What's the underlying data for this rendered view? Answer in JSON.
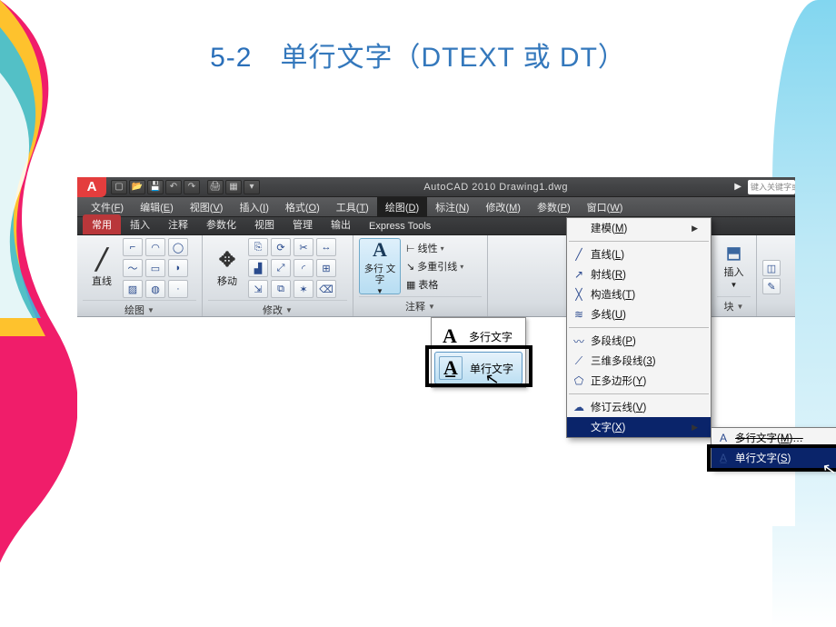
{
  "slide_title_num": "5-2",
  "slide_title_rest": "　单行文字（DTEXT 或  DT）",
  "titlebar": "AutoCAD 2010   Drawing1.dwg",
  "searchbox_ph": "键入关键字或",
  "menus": [
    "文件(F)",
    "编辑(E)",
    "视图(V)",
    "插入(I)",
    "格式(O)",
    "工具(T)",
    "绘图(D)",
    "标注(N)",
    "修改(M)",
    "参数(P)",
    "窗口(W)"
  ],
  "open_menu_index": 6,
  "tabs": [
    "常用",
    "插入",
    "注释",
    "参数化",
    "视图",
    "管理",
    "输出",
    "Express Tools"
  ],
  "active_tab_index": 0,
  "panels": {
    "draw": {
      "title": "绘图",
      "big": "直线"
    },
    "modify": {
      "title": "修改",
      "big": "移动"
    },
    "ann": {
      "title": "注释",
      "big": "多行\n文字",
      "row1": "线性",
      "row2": "多重引线",
      "row3": "表格"
    },
    "insert": {
      "title": "插入"
    },
    "block": {
      "title": "块"
    }
  },
  "text_dropdown": {
    "item1": "多行文字",
    "item2": "单行文字"
  },
  "draw_menu": [
    {
      "t": "建模(M)",
      "icon": "",
      "arrow": true
    },
    {
      "sep": true
    },
    {
      "t": "直线(L)",
      "icon": "╱"
    },
    {
      "t": "射线(R)",
      "icon": "↗"
    },
    {
      "t": "构造线(T)",
      "icon": "╳"
    },
    {
      "t": "多线(U)",
      "icon": "≋"
    },
    {
      "sep": true
    },
    {
      "t": "多段线(P)",
      "icon": "〰"
    },
    {
      "t": "三维多段线(3)",
      "icon": "⟋"
    },
    {
      "t": "正多边形(Y)",
      "icon": "⬠"
    },
    {
      "sep": true
    },
    {
      "t": "修订云线(V)",
      "icon": "☁"
    },
    {
      "t": "文字(X)",
      "icon": "",
      "arrow": true,
      "sel": true
    }
  ],
  "text_submenu": [
    {
      "t": "多行文字(M)…",
      "icon": "A",
      "strike": true
    },
    {
      "t": "单行文字(S)",
      "icon": "A̲",
      "sel": true
    }
  ],
  "colors": {
    "title": "#2a6fb9",
    "menusel": "#0a246a",
    "tabactive": "#b9373a"
  }
}
